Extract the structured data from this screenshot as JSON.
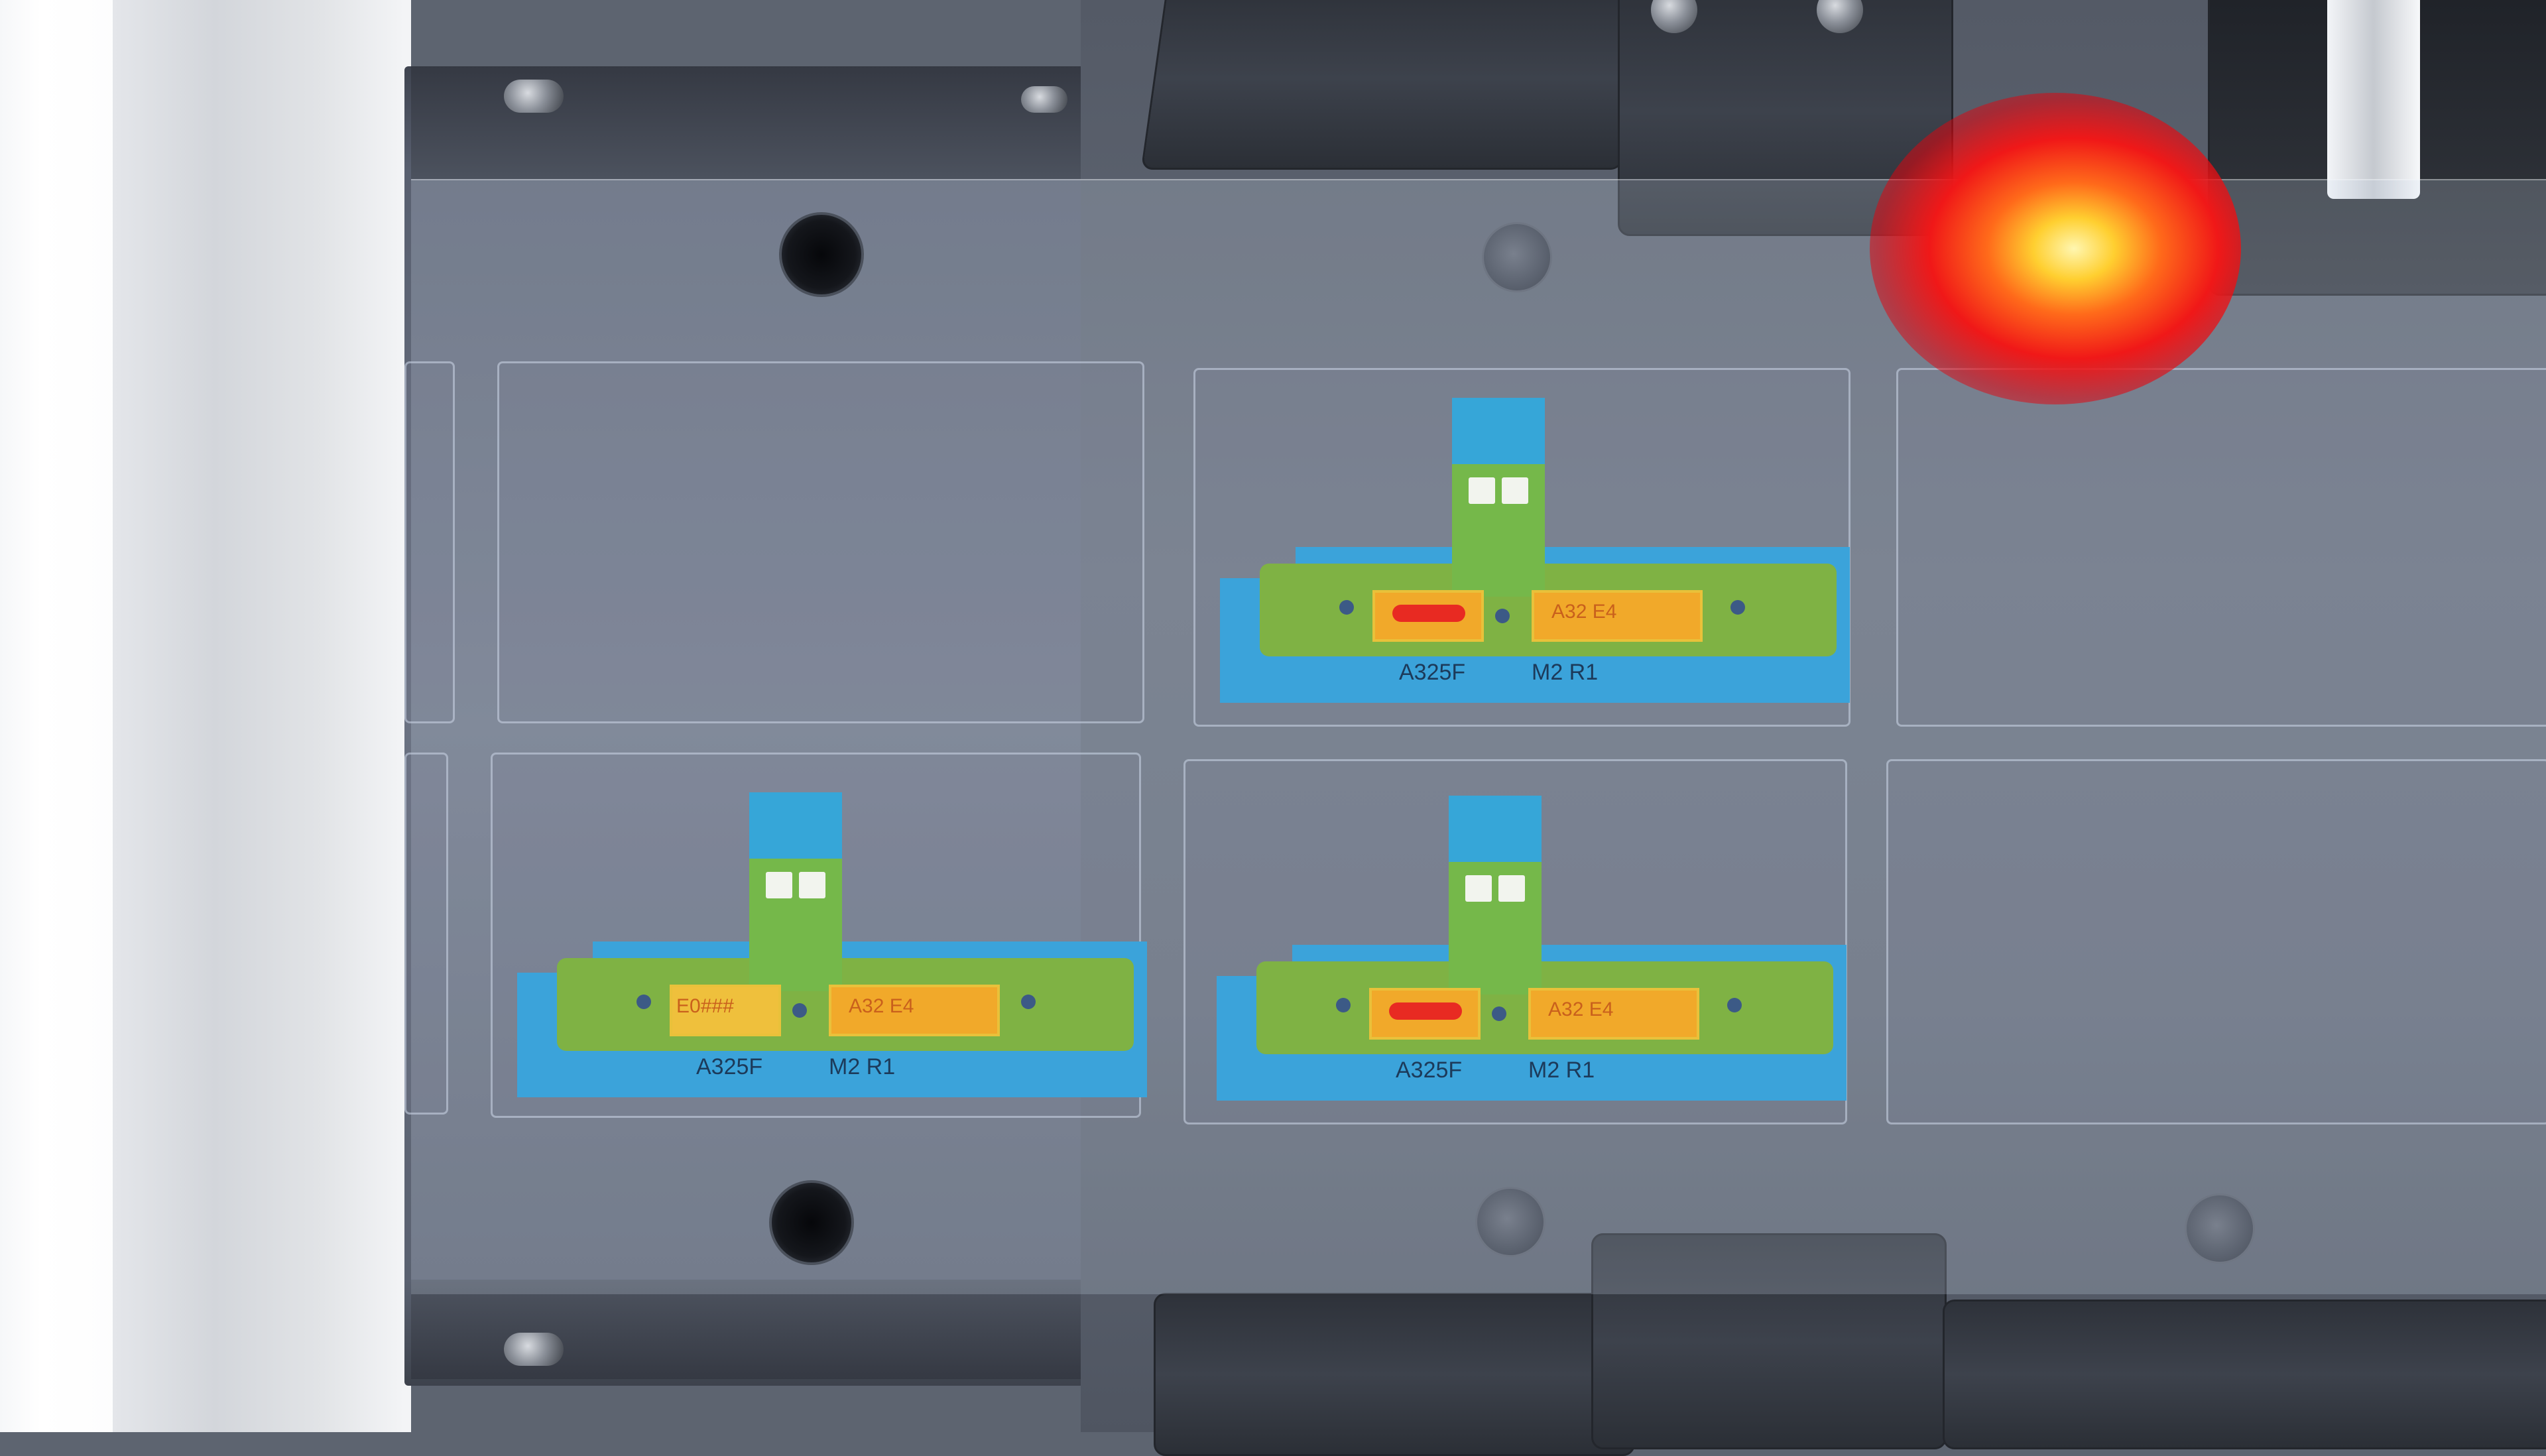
{
  "components": [
    {
      "id": "top-center",
      "left_label": "",
      "right_label": "A32 E4",
      "bottom_left": "A325F",
      "bottom_right": "M2 R1"
    },
    {
      "id": "bottom-left",
      "left_label": "E0###",
      "right_label": "A32 E4",
      "bottom_left": "A325F",
      "bottom_right": "M2 R1"
    },
    {
      "id": "bottom-center",
      "left_label": "",
      "right_label": "A32 E4",
      "bottom_left": "A325F",
      "bottom_right": "M2 R1"
    }
  ]
}
